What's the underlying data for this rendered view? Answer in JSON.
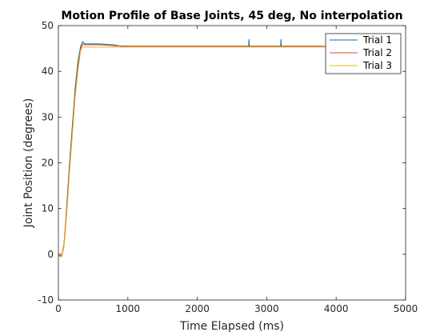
{
  "chart_data": {
    "type": "line",
    "title": "Motion Profile of Base Joints, 45 deg, No interpolation",
    "xlabel": "Time Elapsed (ms)",
    "ylabel": "Joint Position (degrees)",
    "xlim": [
      0,
      5000
    ],
    "ylim": [
      -10,
      50
    ],
    "xticks": [
      0,
      1000,
      2000,
      3000,
      4000,
      5000
    ],
    "yticks": [
      -10,
      0,
      10,
      20,
      30,
      40,
      50
    ],
    "grid": false,
    "legend_position": "top-right",
    "series": [
      {
        "name": "Trial 1",
        "color": "#0072BD",
        "x": [
          0,
          50,
          80,
          100,
          130,
          160,
          200,
          240,
          280,
          320,
          350,
          380,
          420,
          600,
          800,
          900,
          1200,
          1600,
          2000,
          2400,
          2740,
          2745,
          2750,
          2800,
          3000,
          3200,
          3205,
          3210,
          3400,
          3800
        ],
        "y": [
          -0.3,
          -0.3,
          2,
          6,
          13,
          20,
          28,
          36,
          42,
          45.5,
          46.5,
          46,
          46,
          46,
          45.8,
          45.5,
          45.5,
          45.5,
          45.5,
          45.5,
          45.5,
          47,
          45.5,
          45.5,
          45.5,
          45.5,
          47,
          45.5,
          45.5,
          45.5
        ]
      },
      {
        "name": "Trial 2",
        "color": "#D95319",
        "x": [
          0,
          50,
          80,
          100,
          130,
          160,
          200,
          240,
          280,
          320,
          350,
          380,
          420,
          600,
          800,
          1200,
          1600,
          2000,
          2400,
          2800,
          3200,
          3600,
          3880
        ],
        "y": [
          -0.2,
          -0.4,
          2,
          6,
          12,
          19,
          27,
          35,
          41,
          45,
          46,
          45.8,
          45.8,
          45.8,
          45.6,
          45.5,
          45.5,
          45.5,
          45.5,
          45.5,
          45.5,
          45.5,
          45.5
        ]
      },
      {
        "name": "Trial 3",
        "color": "#EDB120",
        "x": [
          0,
          50,
          80,
          100,
          130,
          160,
          200,
          240,
          280,
          320,
          350,
          380,
          420,
          600,
          800,
          1200,
          1600,
          2000,
          2400,
          2800,
          3200,
          3600,
          3900
        ],
        "y": [
          -0.5,
          -0.5,
          1.5,
          5,
          11,
          18,
          26,
          34,
          40,
          44.5,
          45.5,
          45.3,
          45.3,
          45.3,
          45.3,
          45.3,
          45.3,
          45.3,
          45.3,
          45.3,
          45.3,
          45.3,
          45.3
        ]
      }
    ]
  }
}
